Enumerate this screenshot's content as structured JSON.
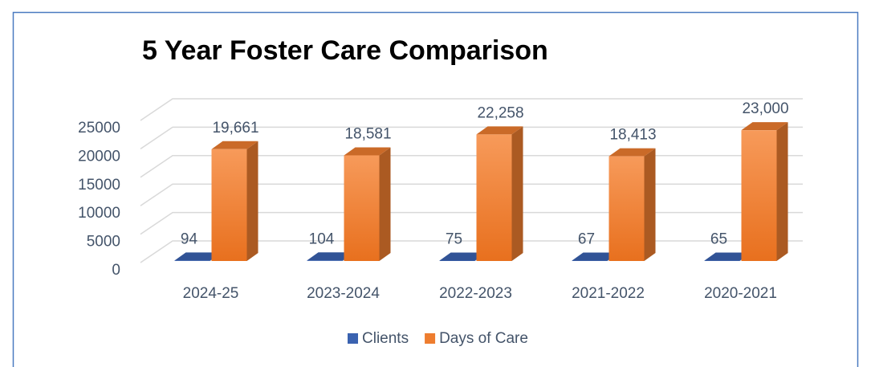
{
  "chart_data": {
    "type": "bar3d",
    "title": "5 Year Foster Care Comparison",
    "categories": [
      "2024-25",
      "2023-2024",
      "2022-2023",
      "2021-2022",
      "2020-2021"
    ],
    "series": [
      {
        "name": "Clients",
        "color": "#3a62b0",
        "values": [
          94,
          104,
          75,
          67,
          65
        ]
      },
      {
        "name": "Days of Care",
        "color": "#ee7d2f",
        "values": [
          19661,
          18581,
          22258,
          18413,
          23000
        ],
        "value_labels": [
          "19,661",
          "18,581",
          "22,258",
          "18,413",
          "23,000"
        ]
      }
    ],
    "ylim": [
      0,
      25000
    ],
    "yticks": [
      0,
      5000,
      10000,
      15000,
      20000,
      25000
    ],
    "grid": true,
    "legend": "bottom"
  }
}
